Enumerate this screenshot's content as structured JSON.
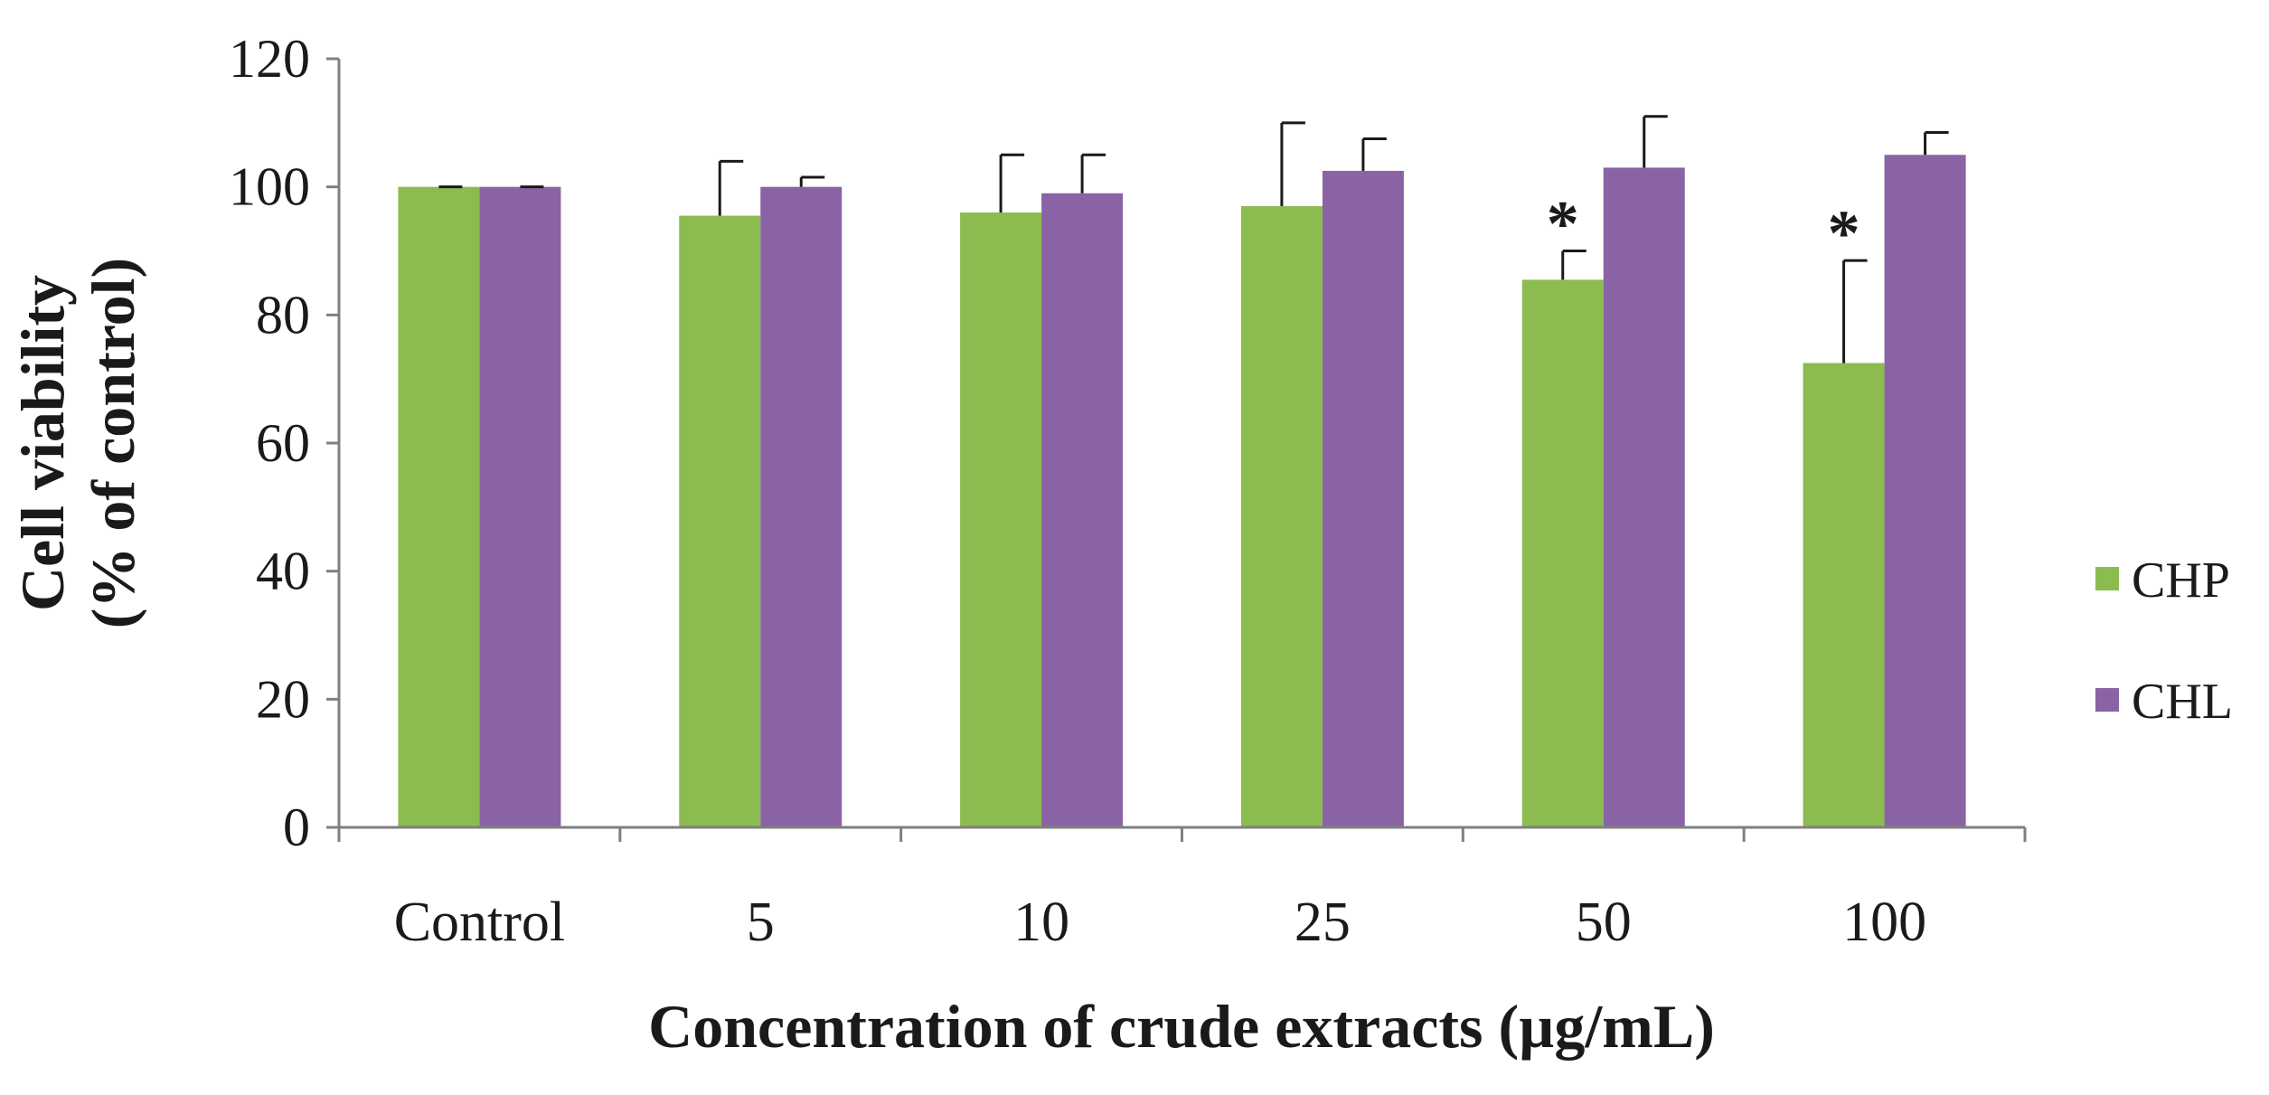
{
  "chart_data": {
    "type": "bar",
    "title": "",
    "xlabel": "Concentration of crude extracts (µg/mL)",
    "ylabel_line1": "Cell viability",
    "ylabel_line2": "(% of control)",
    "categories": [
      "Control",
      "5",
      "10",
      "25",
      "50",
      "100"
    ],
    "ylim": [
      0,
      120
    ],
    "yticks": [
      0,
      20,
      40,
      60,
      80,
      100,
      120
    ],
    "grid": false,
    "legend_position": "right",
    "series": [
      {
        "name": "CHP",
        "color": "#8cbb50",
        "values": [
          100,
          95.5,
          96,
          97,
          85.5,
          72.5
        ],
        "errors": [
          0,
          8.5,
          9,
          13,
          4.5,
          16
        ],
        "significance": [
          "",
          "",
          "",
          "",
          "*",
          "*"
        ]
      },
      {
        "name": "CHL",
        "color": "#8a63a5",
        "values": [
          100,
          100,
          99,
          102.5,
          103,
          105
        ],
        "errors": [
          0,
          1.5,
          6,
          5,
          8,
          3.5
        ],
        "significance": [
          "",
          "",
          "",
          "",
          "",
          ""
        ]
      }
    ]
  }
}
